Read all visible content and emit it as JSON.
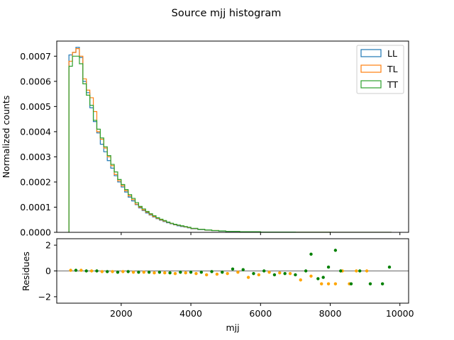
{
  "chart_data": [
    {
      "type": "histogram-step",
      "title": "Source mjj histogram",
      "ylabel": "Normalized counts",
      "xlabel": "",
      "xlim": [
        150,
        10250
      ],
      "ylim": [
        0,
        0.00076
      ],
      "yticks": [
        0,
        0.0001,
        0.0002,
        0.0003,
        0.0004,
        0.0005,
        0.0006,
        0.0007
      ],
      "ytick_labels": [
        "0.0000",
        "0.0001",
        "0.0002",
        "0.0003",
        "0.0004",
        "0.0005",
        "0.0006",
        "0.0007"
      ],
      "legend": "top-right",
      "bin_edges": [
        500,
        600,
        700,
        800,
        900,
        1000,
        1100,
        1200,
        1300,
        1400,
        1500,
        1600,
        1700,
        1800,
        1900,
        2000,
        2100,
        2200,
        2300,
        2400,
        2500,
        2600,
        2700,
        2800,
        2900,
        3000,
        3100,
        3200,
        3300,
        3400,
        3500,
        3600,
        3700,
        3800,
        3900,
        4000,
        4200,
        4400,
        4600,
        4800,
        5000,
        5400,
        6000,
        7000,
        8000,
        9000,
        9750
      ],
      "series": [
        {
          "name": "LL",
          "color": "#1f77b4",
          "values": [
            0.000705,
            0.000715,
            0.000735,
            0.000695,
            0.0006,
            0.000555,
            0.000495,
            0.00044,
            0.000395,
            0.00035,
            0.00032,
            0.000285,
            0.000255,
            0.000225,
            0.0002,
            0.00018,
            0.00016,
            0.00014,
            0.000125,
            0.00011,
            9.7e-05,
            8.7e-05,
            7.7e-05,
            6.9e-05,
            6.1e-05,
            5.4e-05,
            4.8e-05,
            4.3e-05,
            3.8e-05,
            3.4e-05,
            3e-05,
            2.6e-05,
            2.3e-05,
            2.1e-05,
            1.8e-05,
            1.4e-05,
            1.1e-05,
            8.5e-06,
            6.5e-06,
            5e-06,
            3.5e-06,
            2e-06,
            1e-06,
            4e-07,
            2e-07,
            1e-07
          ]
        },
        {
          "name": "TL",
          "color": "#ff7f0e",
          "values": [
            0.00068,
            0.000715,
            0.00073,
            0.0007,
            0.00061,
            0.000565,
            0.000535,
            0.00048,
            0.0004,
            0.00037,
            0.000335,
            0.0003,
            0.000265,
            0.00023,
            0.000205,
            0.000185,
            0.000165,
            0.000145,
            0.00013,
            0.000112,
            0.0001,
            8.9e-05,
            8e-05,
            7.1e-05,
            6.3e-05,
            5.6e-05,
            5e-05,
            4.5e-05,
            4e-05,
            3.5e-05,
            3.1e-05,
            2.8e-05,
            2.5e-05,
            2.2e-05,
            1.9e-05,
            1.5e-05,
            1.2e-05,
            9e-06,
            7e-06,
            5.5e-06,
            4e-06,
            2.2e-06,
            1.1e-06,
            5e-07,
            2e-07,
            1e-07
          ]
        },
        {
          "name": "TT",
          "color": "#2ca02c",
          "values": [
            0.00066,
            0.0007,
            0.0007,
            0.00067,
            0.00059,
            0.000545,
            0.000505,
            0.000445,
            0.00041,
            0.000375,
            0.00034,
            0.000305,
            0.00027,
            0.00024,
            0.00021,
            0.00019,
            0.00017,
            0.00015,
            0.000135,
            0.000118,
            0.000103,
            9.3e-05,
            8.3e-05,
            7.4e-05,
            6.6e-05,
            5.8e-05,
            5.2e-05,
            4.7e-05,
            4.1e-05,
            3.6e-05,
            3.2e-05,
            2.9e-05,
            2.6e-05,
            2.3e-05,
            2e-05,
            1.6e-05,
            1.2e-05,
            9.5e-06,
            7.2e-06,
            5.6e-06,
            4.1e-06,
            2.4e-06,
            1.2e-06,
            5e-07,
            2e-07,
            1e-07
          ]
        }
      ]
    },
    {
      "type": "scatter",
      "xlabel": "mjj",
      "ylabel": "Residues",
      "xlim": [
        150,
        10250
      ],
      "ylim": [
        -2.5,
        2.5
      ],
      "xticks": [
        2000,
        4000,
        6000,
        8000,
        10000
      ],
      "xtick_labels": [
        "2000",
        "4000",
        "6000",
        "8000",
        "10000"
      ],
      "yticks": [
        -2,
        0,
        2
      ],
      "ytick_labels": [
        "−2",
        "0",
        "2"
      ],
      "reference_line": 0,
      "series": [
        {
          "color": "#ffa500",
          "x": [
            550,
            850,
            1150,
            1450,
            1750,
            2050,
            2350,
            2650,
            2950,
            3250,
            3550,
            3850,
            4150,
            4450,
            4750,
            5050,
            5350,
            5650,
            5950,
            6250,
            6550,
            6850,
            7150,
            7450,
            7750,
            7950,
            8150,
            8350,
            8550,
            8750,
            9050
          ],
          "y": [
            0.05,
            0.05,
            0.0,
            -0.05,
            -0.05,
            -0.05,
            -0.1,
            -0.1,
            -0.15,
            -0.15,
            -0.2,
            -0.15,
            -0.2,
            -0.3,
            -0.25,
            -0.2,
            -0.1,
            -0.5,
            -0.3,
            -0.1,
            -0.15,
            -0.2,
            -0.7,
            -0.4,
            -1.0,
            -1.0,
            -1.0,
            0.0,
            -1.0,
            0.0,
            0.0
          ]
        },
        {
          "color": "#008000",
          "x": [
            700,
            1000,
            1300,
            1600,
            1900,
            2200,
            2500,
            2800,
            3100,
            3400,
            3700,
            4000,
            4300,
            4600,
            4900,
            5200,
            5500,
            5800,
            6100,
            6400,
            6700,
            7000,
            7300,
            7450,
            7650,
            7800,
            7950,
            8150,
            8300,
            8600,
            8850,
            9150,
            9500,
            9700
          ],
          "y": [
            0.05,
            0.0,
            0.0,
            -0.05,
            -0.1,
            -0.05,
            -0.1,
            -0.1,
            -0.1,
            -0.15,
            -0.1,
            -0.1,
            -0.1,
            -0.05,
            -0.1,
            0.15,
            0.1,
            -0.2,
            0.0,
            -0.3,
            -0.2,
            -0.3,
            0.0,
            1.3,
            -0.6,
            -0.5,
            0.3,
            1.6,
            0.0,
            -1.0,
            0.0,
            -1.0,
            -1.0,
            0.3
          ]
        }
      ]
    }
  ]
}
